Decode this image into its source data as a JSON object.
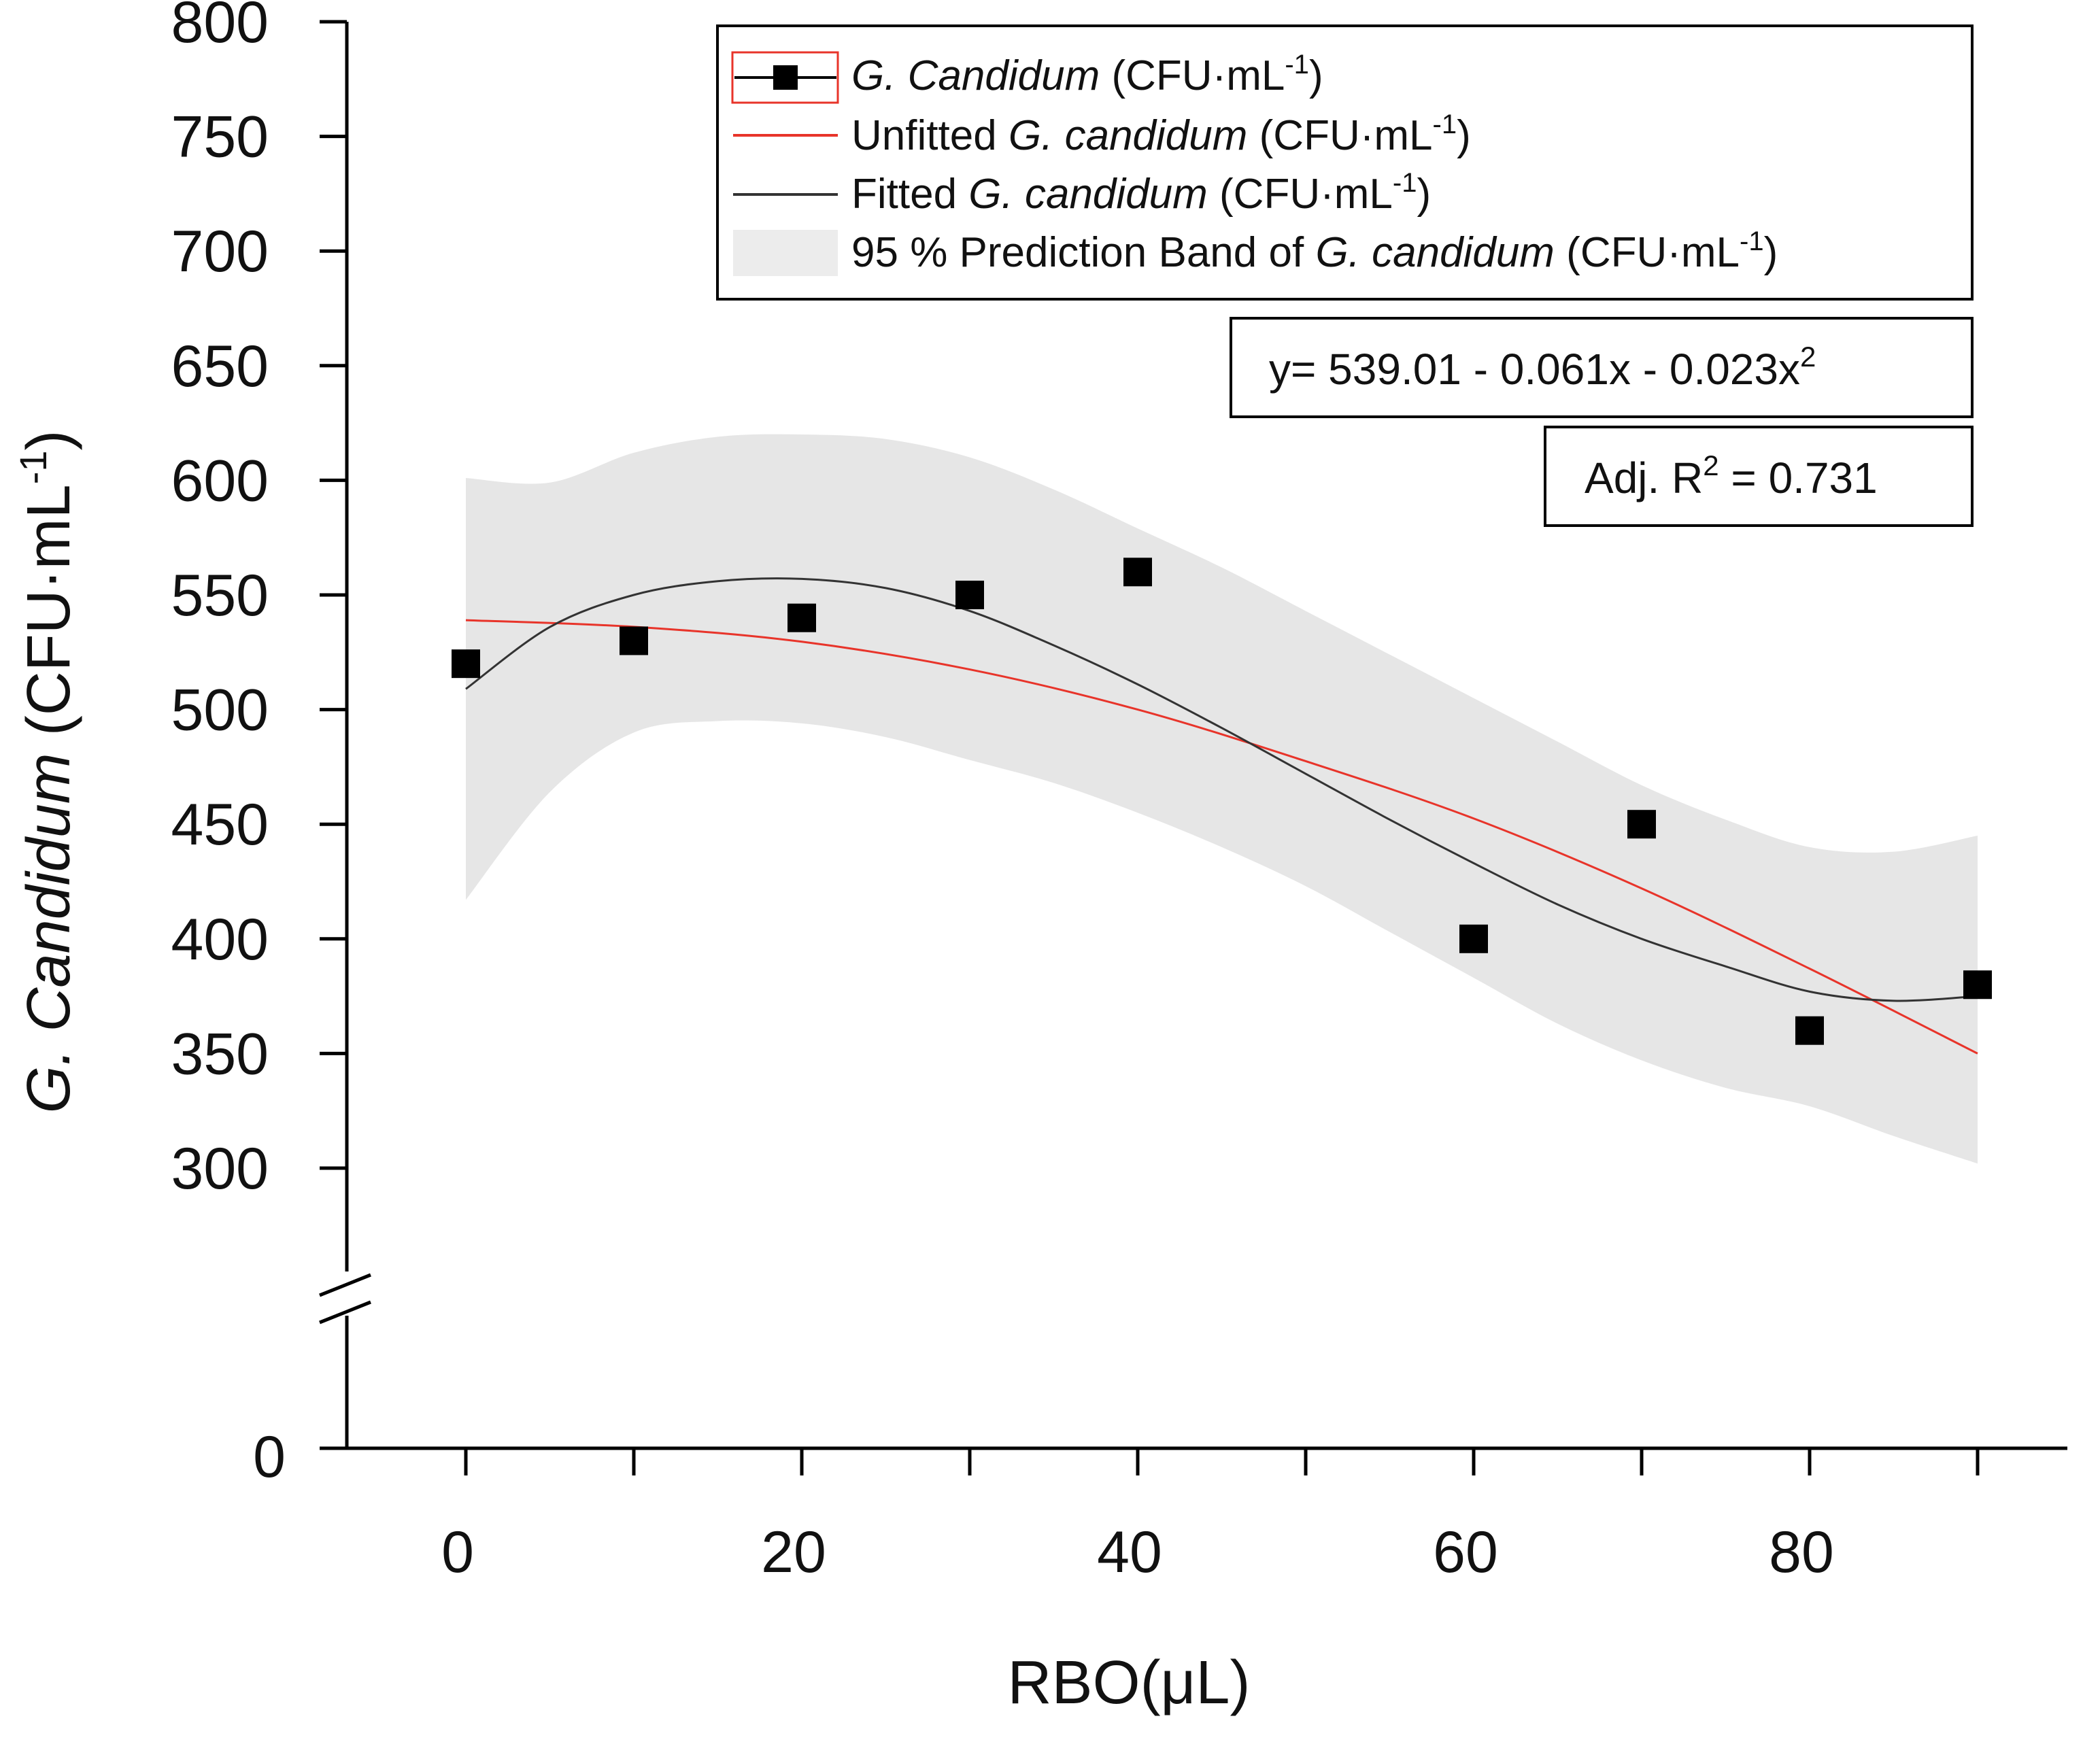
{
  "chart_data": {
    "type": "scatter",
    "xlabel": "RBO(μL)",
    "ylabel": {
      "italic": "G. Candidum",
      "unit_base": " (CFU·mL",
      "unit_sup": "-1",
      "unit_end": ")"
    },
    "xlim": [
      -8,
      96
    ],
    "ylim": [
      250,
      800
    ],
    "y_axis_break": true,
    "x_ticks": [
      0,
      20,
      40,
      60,
      80
    ],
    "x_tick_labels": [
      "0",
      "20",
      "40",
      "60",
      "80"
    ],
    "x_minor_ticks": [
      10,
      30,
      50,
      70,
      90
    ],
    "y_ticks": [
      300,
      350,
      400,
      450,
      500,
      550,
      600,
      650,
      700,
      750,
      800
    ],
    "y_tick_labels": [
      "300",
      "350",
      "400",
      "450",
      "500",
      "550",
      "600",
      "650",
      "700",
      "750",
      "800"
    ],
    "y_zero_label": "0",
    "series": [
      {
        "name": "G. Candidum (CFU·mL-1)",
        "kind": "points",
        "color": "#000000",
        "x": [
          0,
          10,
          20,
          30,
          40,
          60,
          70,
          80,
          90
        ],
        "y": [
          520,
          530,
          540,
          550,
          560,
          400,
          450,
          360,
          380
        ]
      },
      {
        "name": "Unfitted G. candidum (CFU·mL-1)",
        "kind": "line",
        "color": "#e8342a",
        "x": [
          0,
          10,
          20,
          30,
          40,
          50,
          60,
          70,
          80,
          90
        ],
        "y": [
          539.0,
          536.1,
          529.6,
          517.5,
          500.0,
          477.5,
          452.5,
          422.0,
          387.0,
          350.0
        ]
      },
      {
        "name": "Fitted G. candidum (CFU·mL-1)",
        "kind": "line",
        "color": "#333333",
        "x": [
          0,
          5,
          10,
          15,
          20,
          25,
          30,
          35,
          40,
          45,
          50,
          55,
          60,
          65,
          70,
          75,
          80,
          85,
          90
        ],
        "y": [
          509,
          536,
          550,
          556,
          557,
          553,
          543,
          528,
          511,
          492,
          472,
          452,
          433,
          415,
          400,
          388,
          377,
          373,
          375
        ]
      },
      {
        "name": "95 % Prediction Band of G. candidum (CFU·mL-1)",
        "kind": "band",
        "color": "#e6e6e6",
        "x": [
          0,
          5,
          10,
          15,
          20,
          25,
          30,
          35,
          40,
          45,
          50,
          55,
          60,
          65,
          70,
          75,
          80,
          85,
          90
        ],
        "upper": [
          601,
          599,
          612,
          619,
          620,
          618,
          610,
          596,
          579,
          562,
          543,
          524,
          505,
          486,
          467,
          452,
          440,
          438,
          445
        ],
        "lower": [
          417,
          464,
          490,
          495,
          494,
          488,
          478,
          468,
          455,
          440,
          423,
          403,
          383,
          363,
          347,
          335,
          327,
          314,
          302
        ]
      }
    ],
    "legend": {
      "position": "top-right",
      "entries": [
        {
          "italic_part": "G. Candidum",
          "prefix": "",
          "suffix": " (CFU·mL",
          "sup": "-1",
          "end": ")"
        },
        {
          "prefix": "Unfitted ",
          "italic_part": "G. candidum",
          "suffix": " (CFU·mL",
          "sup": "-1",
          "end": ")"
        },
        {
          "prefix": "Fitted ",
          "italic_part": "G. candidum",
          "suffix": " (CFU·mL",
          "sup": "-1",
          "end": ")"
        },
        {
          "prefix": "95 % Prediction Band of ",
          "italic_part": "G. candidum",
          "suffix": " (CFU·mL",
          "sup": "-1",
          "end": ")"
        }
      ]
    },
    "annotations": {
      "equation": {
        "base": "y= 539.01 - 0.061x - 0.023x",
        "sup": "2"
      },
      "r_squared": {
        "pre": "Adj. R",
        "sup": "2",
        "post": " = 0.731"
      }
    }
  }
}
